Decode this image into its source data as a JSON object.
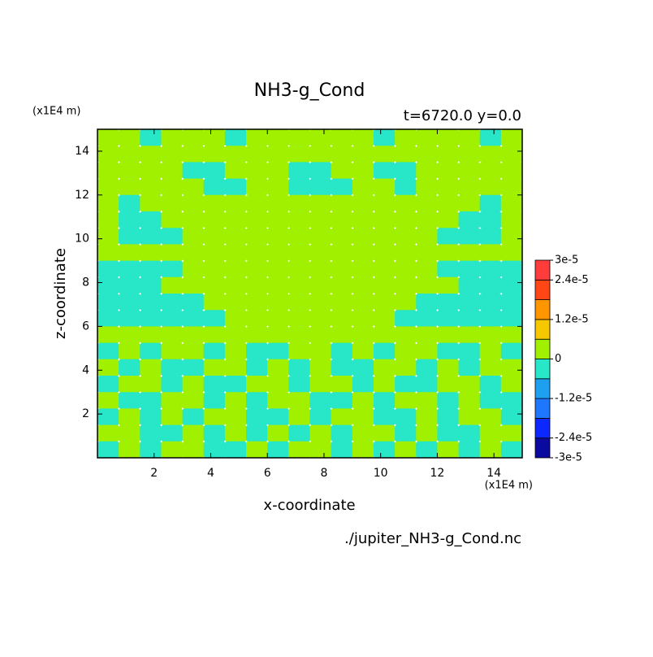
{
  "chart_data": {
    "type": "contour",
    "title": "NH3-g_Cond",
    "subtitle": "t=6720.0 y=0.0",
    "x_unit": "(x1E4 m)",
    "y_unit": "(x1E4 m)",
    "x_label": "x-coordinate",
    "y_label": "z-coordinate",
    "source": "./jupiter_NH3-g_Cond.nc",
    "xlim": [
      0,
      15
    ],
    "ylim": [
      0,
      15
    ],
    "xticks": [
      2,
      4,
      6,
      8,
      10,
      12,
      14
    ],
    "yticks": [
      2,
      4,
      6,
      8,
      10,
      12,
      14
    ],
    "x": [
      0.375,
      1.125,
      1.875,
      2.625,
      3.375,
      4.125,
      4.875,
      5.625,
      6.375,
      7.125,
      7.875,
      8.625,
      9.375,
      10.125,
      10.875,
      11.625,
      12.375,
      13.125,
      13.875,
      14.625
    ],
    "y": [
      14.625,
      13.875,
      13.125,
      12.375,
      11.625,
      10.875,
      10.125,
      9.375,
      8.625,
      7.875,
      7.125,
      6.375,
      5.625,
      4.875,
      4.125,
      3.375,
      2.625,
      1.875,
      1.125,
      0.375
    ],
    "z": [
      [
        3e-06,
        3e-06,
        -3e-06,
        3e-06,
        3e-06,
        3e-06,
        -3e-06,
        3e-06,
        3e-06,
        3e-06,
        3e-06,
        3e-06,
        3e-06,
        -3e-06,
        3e-06,
        3e-06,
        3e-06,
        3e-06,
        -3e-06,
        3e-06
      ],
      [
        3e-06,
        3e-06,
        3e-06,
        3e-06,
        3e-06,
        3e-06,
        3e-06,
        3e-06,
        3e-06,
        3e-06,
        3e-06,
        3e-06,
        3e-06,
        3e-06,
        3e-06,
        3e-06,
        3e-06,
        3e-06,
        3e-06,
        3e-06
      ],
      [
        3e-06,
        3e-06,
        3e-06,
        3e-06,
        -3e-06,
        -3e-06,
        3e-06,
        3e-06,
        3e-06,
        -3e-06,
        -3e-06,
        3e-06,
        3e-06,
        -3e-06,
        -3e-06,
        3e-06,
        3e-06,
        3e-06,
        3e-06,
        3e-06
      ],
      [
        3e-06,
        3e-06,
        3e-06,
        3e-06,
        3e-06,
        -3e-06,
        -3e-06,
        3e-06,
        3e-06,
        -3e-06,
        -3e-06,
        -3e-06,
        3e-06,
        3e-06,
        -3e-06,
        3e-06,
        3e-06,
        3e-06,
        3e-06,
        3e-06
      ],
      [
        3e-06,
        -3e-06,
        3e-06,
        3e-06,
        3e-06,
        3e-06,
        3e-06,
        3e-06,
        3e-06,
        3e-06,
        3e-06,
        3e-06,
        3e-06,
        3e-06,
        3e-06,
        3e-06,
        3e-06,
        3e-06,
        -3e-06,
        3e-06
      ],
      [
        3e-06,
        -3e-06,
        -3e-06,
        3e-06,
        3e-06,
        3e-06,
        3e-06,
        3e-06,
        3e-06,
        3e-06,
        3e-06,
        3e-06,
        3e-06,
        3e-06,
        3e-06,
        3e-06,
        3e-06,
        -3e-06,
        -3e-06,
        3e-06
      ],
      [
        3e-06,
        -3e-06,
        -3e-06,
        -3e-06,
        3e-06,
        3e-06,
        3e-06,
        3e-06,
        3e-06,
        3e-06,
        3e-06,
        3e-06,
        3e-06,
        3e-06,
        3e-06,
        3e-06,
        -3e-06,
        -3e-06,
        -3e-06,
        3e-06
      ],
      [
        3e-06,
        3e-06,
        3e-06,
        3e-06,
        3e-06,
        3e-06,
        3e-06,
        3e-06,
        3e-06,
        3e-06,
        3e-06,
        3e-06,
        3e-06,
        3e-06,
        3e-06,
        3e-06,
        3e-06,
        3e-06,
        3e-06,
        3e-06
      ],
      [
        -3e-06,
        -3e-06,
        -3e-06,
        -3e-06,
        3e-06,
        3e-06,
        3e-06,
        3e-06,
        3e-06,
        3e-06,
        3e-06,
        3e-06,
        3e-06,
        3e-06,
        3e-06,
        3e-06,
        -3e-06,
        -3e-06,
        -3e-06,
        -3e-06
      ],
      [
        -3e-06,
        -3e-06,
        -3e-06,
        3e-06,
        3e-06,
        3e-06,
        3e-06,
        3e-06,
        3e-06,
        3e-06,
        3e-06,
        3e-06,
        3e-06,
        3e-06,
        3e-06,
        3e-06,
        3e-06,
        -3e-06,
        -3e-06,
        -3e-06
      ],
      [
        -3e-06,
        -3e-06,
        -3e-06,
        -3e-06,
        -3e-06,
        3e-06,
        3e-06,
        3e-06,
        3e-06,
        3e-06,
        3e-06,
        3e-06,
        3e-06,
        3e-06,
        3e-06,
        -3e-06,
        -3e-06,
        -3e-06,
        -3e-06,
        -3e-06
      ],
      [
        -3e-06,
        -3e-06,
        -3e-06,
        -3e-06,
        -3e-06,
        -3e-06,
        3e-06,
        3e-06,
        3e-06,
        3e-06,
        3e-06,
        3e-06,
        3e-06,
        3e-06,
        -3e-06,
        -3e-06,
        -3e-06,
        -3e-06,
        -3e-06,
        -3e-06
      ],
      [
        3e-06,
        3e-06,
        3e-06,
        3e-06,
        3e-06,
        3e-06,
        3e-06,
        3e-06,
        3e-06,
        3e-06,
        3e-06,
        3e-06,
        3e-06,
        3e-06,
        3e-06,
        3e-06,
        3e-06,
        3e-06,
        3e-06,
        3e-06
      ],
      [
        -3e-06,
        3e-06,
        -3e-06,
        3e-06,
        3e-06,
        -3e-06,
        3e-06,
        -3e-06,
        -3e-06,
        3e-06,
        3e-06,
        -3e-06,
        3e-06,
        -3e-06,
        3e-06,
        3e-06,
        -3e-06,
        -3e-06,
        3e-06,
        -3e-06
      ],
      [
        3e-06,
        -3e-06,
        3e-06,
        -3e-06,
        -3e-06,
        3e-06,
        3e-06,
        -3e-06,
        3e-06,
        -3e-06,
        3e-06,
        -3e-06,
        -3e-06,
        3e-06,
        3e-06,
        -3e-06,
        3e-06,
        -3e-06,
        3e-06,
        3e-06
      ],
      [
        -3e-06,
        3e-06,
        3e-06,
        -3e-06,
        3e-06,
        -3e-06,
        -3e-06,
        3e-06,
        3e-06,
        -3e-06,
        3e-06,
        3e-06,
        -3e-06,
        3e-06,
        -3e-06,
        -3e-06,
        3e-06,
        3e-06,
        -3e-06,
        3e-06
      ],
      [
        3e-06,
        -3e-06,
        -3e-06,
        3e-06,
        3e-06,
        -3e-06,
        3e-06,
        -3e-06,
        3e-06,
        3e-06,
        -3e-06,
        -3e-06,
        3e-06,
        -3e-06,
        3e-06,
        3e-06,
        -3e-06,
        3e-06,
        -3e-06,
        -3e-06
      ],
      [
        -3e-06,
        3e-06,
        -3e-06,
        3e-06,
        -3e-06,
        3e-06,
        3e-06,
        -3e-06,
        -3e-06,
        3e-06,
        -3e-06,
        3e-06,
        3e-06,
        -3e-06,
        -3e-06,
        3e-06,
        -3e-06,
        3e-06,
        3e-06,
        -3e-06
      ],
      [
        3e-06,
        3e-06,
        -3e-06,
        -3e-06,
        3e-06,
        -3e-06,
        3e-06,
        -3e-06,
        3e-06,
        -3e-06,
        3e-06,
        -3e-06,
        3e-06,
        3e-06,
        -3e-06,
        3e-06,
        -3e-06,
        -3e-06,
        3e-06,
        3e-06
      ],
      [
        -3e-06,
        3e-06,
        -3e-06,
        3e-06,
        3e-06,
        -3e-06,
        -3e-06,
        3e-06,
        -3e-06,
        3e-06,
        3e-06,
        -3e-06,
        3e-06,
        -3e-06,
        3e-06,
        -3e-06,
        3e-06,
        -3e-06,
        3e-06,
        -3e-06
      ]
    ],
    "levels": [
      -3e-05,
      -2.4e-05,
      -1.8e-05,
      -1.2e-05,
      -6e-06,
      0,
      6e-06,
      1.2e-05,
      1.8e-05,
      2.4e-05,
      3e-05
    ],
    "colors": [
      "#0a0aa0",
      "#0a28ff",
      "#1e78ff",
      "#1ea0f0",
      "#28e6c8",
      "#a0f000",
      "#f5c800",
      "#ff9600",
      "#ff4614",
      "#ff3c3c"
    ],
    "colorbar_ticks": [
      {
        "value": 3e-05,
        "label": "3e-5"
      },
      {
        "value": 2.4e-05,
        "label": "2.4e-5"
      },
      {
        "value": 1.2e-05,
        "label": "1.2e-5"
      },
      0,
      {
        "value": -1.2e-05,
        "label": "-1.2e-5"
      },
      {
        "value": -2.4e-05,
        "label": "-2.4e-5"
      },
      {
        "value": -3e-05,
        "label": "-3e-5"
      }
    ]
  }
}
